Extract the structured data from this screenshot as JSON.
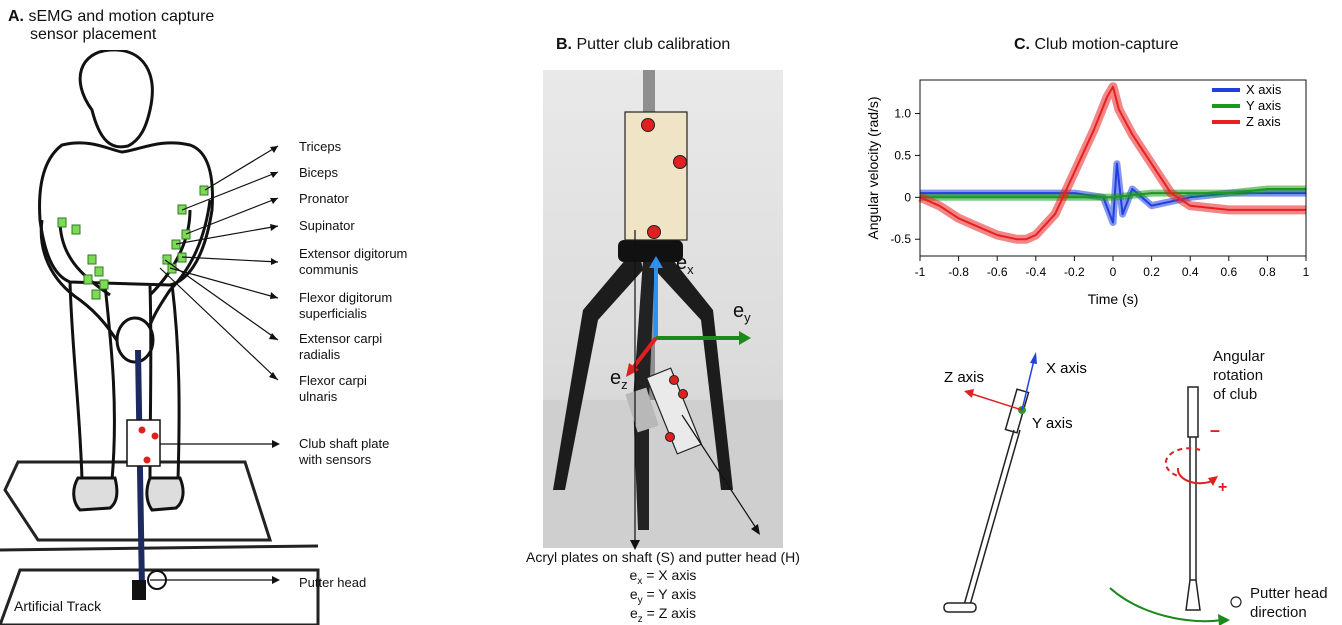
{
  "panelA": {
    "letter": "A.",
    "title_line1": "sEMG and motion capture",
    "title_line2": "sensor placement",
    "muscles": [
      "Triceps",
      "Biceps",
      "Pronator",
      "Supinator",
      "Extensor digitorum\ncommunis",
      "Flexor digitorum\nsuperficialis",
      "Extensor carpi\nradialis",
      "Flexor carpi\nulnaris"
    ],
    "shaft_plate_label": "Club shaft plate\nwith sensors",
    "putter_head_label": "Putter head",
    "track_label": "Artificial Track",
    "sensor_color": "#7ed957",
    "marker_color": "#e02020"
  },
  "panelB": {
    "letter": "B.",
    "title": "Putter club calibration",
    "axis_ex": "e",
    "axis_ex_sub": "x",
    "axis_ey": "e",
    "axis_ey_sub": "y",
    "axis_ez": "e",
    "axis_ez_sub": "z",
    "caption": "Acryl plates on shaft (S) and putter head (H)",
    "eq1_sub": "x",
    "eq1_rest": " = X axis",
    "eq2_sub": "y",
    "eq2_rest": " = Y axis",
    "eq3_sub": "z",
    "eq3_rest": " = Z axis",
    "colors": {
      "x": "#2f8ff0",
      "y": "#1a8a1a",
      "z": "#e02020"
    }
  },
  "panelC": {
    "letter": "C.",
    "title": "Club motion-capture",
    "chart_data": {
      "type": "line",
      "xlabel": "Time (s)",
      "ylabel": "Angular velocity (rad/s)",
      "xlim": [
        -1,
        1
      ],
      "ylim": [
        -0.7,
        1.4
      ],
      "xticks": [
        "-1",
        "-0.8",
        "-0.6",
        "-0.4",
        "-0.2",
        "0",
        "0.2",
        "0.4",
        "0.6",
        "0.8",
        "1"
      ],
      "yticks": [
        "1.0",
        "0.5",
        "0",
        "-0.5"
      ],
      "series": [
        {
          "name": "X axis",
          "color": "#1f3fe0",
          "x": [
            -1,
            -0.8,
            -0.6,
            -0.4,
            -0.2,
            -0.05,
            0,
            0.02,
            0.05,
            0.1,
            0.2,
            0.4,
            0.6,
            0.8,
            1
          ],
          "values": [
            0.05,
            0.05,
            0.05,
            0.05,
            0.05,
            0.0,
            -0.3,
            0.4,
            -0.2,
            0.1,
            -0.1,
            0.0,
            0.05,
            0.05,
            0.05
          ]
        },
        {
          "name": "Y axis",
          "color": "#1a9a1a",
          "x": [
            -1,
            -0.8,
            -0.6,
            -0.4,
            -0.2,
            0,
            0.2,
            0.4,
            0.6,
            0.8,
            1
          ],
          "values": [
            0.0,
            0.0,
            0.0,
            0.0,
            0.0,
            0.0,
            0.05,
            0.05,
            0.05,
            0.1,
            0.1
          ]
        },
        {
          "name": "Z axis",
          "color": "#e82020",
          "x": [
            -1,
            -0.9,
            -0.8,
            -0.7,
            -0.6,
            -0.5,
            -0.45,
            -0.4,
            -0.3,
            -0.2,
            -0.1,
            -0.03,
            0,
            0.03,
            0.1,
            0.2,
            0.3,
            0.4,
            0.6,
            0.8,
            1
          ],
          "values": [
            0.0,
            -0.1,
            -0.25,
            -0.35,
            -0.45,
            -0.5,
            -0.5,
            -0.45,
            -0.2,
            0.3,
            0.8,
            1.2,
            1.32,
            1.05,
            0.75,
            0.4,
            0.05,
            -0.1,
            -0.15,
            -0.15,
            -0.15
          ]
        }
      ],
      "legend_position": "top-right"
    },
    "diagram": {
      "z_axis": "Z axis",
      "x_axis": "X axis",
      "y_axis": "Y axis",
      "rotation_label": "Angular\nrotation\nof club",
      "minus": "–",
      "plus": "+",
      "putter_dir": "Putter head\ndirection"
    }
  }
}
